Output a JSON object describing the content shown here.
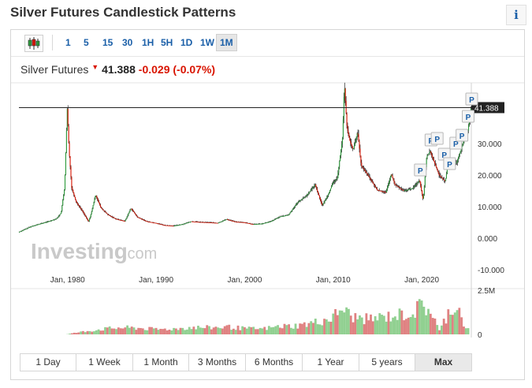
{
  "header": {
    "title": "Silver Futures Candlestick Patterns",
    "info_glyph": "i"
  },
  "toolbar": {
    "chart_type_icon": "candlestick-icon",
    "timeframes": [
      {
        "label": "1",
        "active": false
      },
      {
        "label": "5",
        "active": false
      },
      {
        "label": "15",
        "active": false
      },
      {
        "label": "30",
        "active": false
      },
      {
        "label": "1H",
        "active": false
      },
      {
        "label": "5H",
        "active": false
      },
      {
        "label": "1D",
        "active": false
      },
      {
        "label": "1W",
        "active": false
      },
      {
        "label": "1M",
        "active": true
      }
    ]
  },
  "quote": {
    "name": "Silver Futures",
    "last": "41.388",
    "change": "-0.029",
    "change_pct": "(-0.07%)",
    "direction": "down"
  },
  "watermark": {
    "brand": "Investing",
    "suffix": ".com"
  },
  "range_buttons": [
    {
      "label": "1 Day",
      "active": false
    },
    {
      "label": "1 Week",
      "active": false
    },
    {
      "label": "1 Month",
      "active": false
    },
    {
      "label": "3 Months",
      "active": false
    },
    {
      "label": "6 Months",
      "active": false
    },
    {
      "label": "1 Year",
      "active": false
    },
    {
      "label": "5 years",
      "active": false
    },
    {
      "label": "Max",
      "active": true
    }
  ],
  "chart_data": {
    "type": "candlestick",
    "x_axis": {
      "ticks": [
        {
          "year": 1980,
          "label": "Jan, 1980"
        },
        {
          "year": 1990,
          "label": "Jan, 1990"
        },
        {
          "year": 2000,
          "label": "Jan, 2000"
        },
        {
          "year": 2010,
          "label": "Jan, 2010"
        },
        {
          "year": 2020,
          "label": "Jan, 2020"
        }
      ],
      "range": [
        1974.5,
        2025.6
      ]
    },
    "y_axis": {
      "ticks": [
        {
          "value": 30,
          "label": "30.000"
        },
        {
          "value": 20,
          "label": "20.000"
        },
        {
          "value": 10,
          "label": "10.000"
        },
        {
          "value": 0,
          "label": "0.000"
        },
        {
          "value": -10,
          "label": "-10.000"
        }
      ],
      "range": [
        -12,
        48
      ]
    },
    "last_price": {
      "value": 41.388,
      "label": "41.388"
    },
    "price_path": [
      [
        1974.5,
        1.9
      ],
      [
        1976,
        3.8
      ],
      [
        1977,
        4.6
      ],
      [
        1978,
        5.4
      ],
      [
        1978.8,
        6.2
      ],
      [
        1979.3,
        8
      ],
      [
        1979.7,
        16
      ],
      [
        1980.0,
        41
      ],
      [
        1980.2,
        28
      ],
      [
        1980.5,
        16
      ],
      [
        1981,
        11.5
      ],
      [
        1981.8,
        8.2
      ],
      [
        1982.4,
        5.2
      ],
      [
        1982.7,
        7.8
      ],
      [
        1983.2,
        13.8
      ],
      [
        1983.8,
        9.6
      ],
      [
        1984.6,
        7.4
      ],
      [
        1985.5,
        6.1
      ],
      [
        1986.5,
        5.4
      ],
      [
        1987.2,
        9.5
      ],
      [
        1987.9,
        6.7
      ],
      [
        1989,
        5.3
      ],
      [
        1990,
        4.8
      ],
      [
        1991,
        4.1
      ],
      [
        1992,
        3.9
      ],
      [
        1993,
        4.4
      ],
      [
        1994,
        5.3
      ],
      [
        1995,
        5.1
      ],
      [
        1996,
        5
      ],
      [
        1997,
        4.8
      ],
      [
        1998,
        6
      ],
      [
        1999,
        5.2
      ],
      [
        2000,
        5
      ],
      [
        2001,
        4.4
      ],
      [
        2002,
        4.6
      ],
      [
        2003,
        5.3
      ],
      [
        2004,
        6.8
      ],
      [
        2005,
        7.4
      ],
      [
        2006,
        11.3
      ],
      [
        2007,
        13.4
      ],
      [
        2008,
        17
      ],
      [
        2008.8,
        10.3
      ],
      [
        2009.5,
        14
      ],
      [
        2010,
        17.5
      ],
      [
        2010.5,
        19
      ],
      [
        2011.1,
        32
      ],
      [
        2011.3,
        49
      ],
      [
        2011.6,
        35
      ],
      [
        2011.9,
        31
      ],
      [
        2012.3,
        28
      ],
      [
        2012.8,
        33.8
      ],
      [
        2013.2,
        23
      ],
      [
        2014,
        19.8
      ],
      [
        2015,
        15.3
      ],
      [
        2016,
        14.5
      ],
      [
        2016.6,
        20.3
      ],
      [
        2017,
        17
      ],
      [
        2018,
        15
      ],
      [
        2019,
        15.8
      ],
      [
        2019.8,
        18.4
      ],
      [
        2020.2,
        12
      ],
      [
        2020.6,
        26
      ],
      [
        2021,
        27.5
      ],
      [
        2022,
        20
      ],
      [
        2022.7,
        18
      ],
      [
        2023,
        23.5
      ],
      [
        2024,
        24
      ],
      [
        2024.8,
        31
      ],
      [
        2025.2,
        33
      ],
      [
        2025.6,
        41.388
      ]
    ],
    "annotations": [
      {
        "label": "P",
        "year": 2019.8,
        "value": 21.5
      },
      {
        "label": "P",
        "year": 2021.0,
        "value": 31
      },
      {
        "label": "P",
        "year": 2021.7,
        "value": 31.5
      },
      {
        "label": "P",
        "year": 2022.5,
        "value": 26.5
      },
      {
        "label": "P",
        "year": 2023.1,
        "value": 23.5
      },
      {
        "label": "P",
        "year": 2023.8,
        "value": 30
      },
      {
        "label": "P",
        "year": 2024.5,
        "value": 32.5
      },
      {
        "label": "P",
        "year": 2025.2,
        "value": 38.5
      },
      {
        "label": "P",
        "year": 2025.6,
        "value": 44
      }
    ],
    "volume_axis": {
      "ticks": [
        {
          "value": 2.5,
          "label": "2.5M"
        },
        {
          "value": 0,
          "label": "0"
        }
      ],
      "range": [
        0,
        2.5
      ]
    },
    "volume": [
      [
        1980,
        0.02
      ],
      [
        1982,
        0.18
      ],
      [
        1984,
        0.32
      ],
      [
        1986,
        0.4
      ],
      [
        1988,
        0.38
      ],
      [
        1990,
        0.3
      ],
      [
        1992,
        0.33
      ],
      [
        1994,
        0.42
      ],
      [
        1996,
        0.4
      ],
      [
        1998,
        0.45
      ],
      [
        2000,
        0.35
      ],
      [
        2002,
        0.33
      ],
      [
        2004,
        0.48
      ],
      [
        2006,
        0.52
      ],
      [
        2008,
        0.72
      ],
      [
        2010,
        1.0
      ],
      [
        2011,
        1.6
      ],
      [
        2012,
        1.05
      ],
      [
        2014,
        0.9
      ],
      [
        2016,
        1.05
      ],
      [
        2018,
        1.2
      ],
      [
        2019,
        1.3
      ],
      [
        2020,
        1.7
      ],
      [
        2021,
        1.45
      ],
      [
        2022,
        0.2
      ],
      [
        2023,
        1.3
      ],
      [
        2024,
        1.8
      ],
      [
        2025,
        0.3
      ]
    ]
  }
}
